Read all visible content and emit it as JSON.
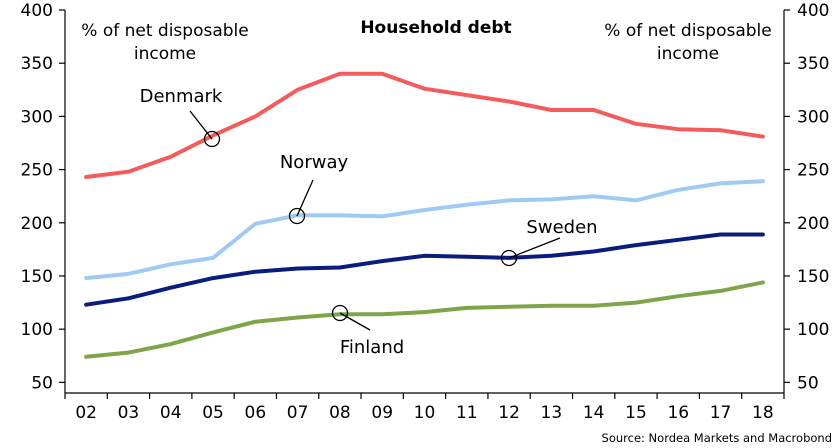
{
  "chart_data": {
    "type": "line",
    "title": "Household debt",
    "ylabel_left": [
      "% of net disposable",
      "income"
    ],
    "ylabel_right": [
      "% of net disposable",
      "income"
    ],
    "source": "Source: Nordea Markets and Macrobond",
    "ylim": [
      40,
      400
    ],
    "yticks": [
      50,
      100,
      150,
      200,
      250,
      300,
      350,
      400
    ],
    "categories": [
      "02",
      "03",
      "04",
      "05",
      "06",
      "07",
      "08",
      "09",
      "10",
      "11",
      "12",
      "13",
      "14",
      "15",
      "16",
      "17",
      "18"
    ],
    "grid": false,
    "series": [
      {
        "name": "Denmark",
        "color": "#f25c5c",
        "values": [
          243,
          248,
          262,
          282,
          300,
          325,
          340,
          340,
          326,
          320,
          314,
          306,
          306,
          293,
          288,
          287,
          281
        ]
      },
      {
        "name": "Norway",
        "color": "#9fcbf3",
        "values": [
          148,
          152,
          161,
          167,
          199,
          207,
          207,
          206,
          212,
          217,
          221,
          222,
          225,
          221,
          231,
          237,
          239
        ]
      },
      {
        "name": "Sweden",
        "color": "#0c1c7c",
        "values": [
          123,
          129,
          139,
          148,
          154,
          157,
          158,
          164,
          169,
          168,
          167,
          169,
          173,
          179,
          184,
          189,
          189
        ]
      },
      {
        "name": "Finland",
        "color": "#7fa54a",
        "values": [
          74,
          78,
          86,
          97,
          107,
          111,
          114,
          114,
          116,
          120,
          121,
          122,
          122,
          125,
          131,
          136,
          144
        ]
      }
    ]
  }
}
